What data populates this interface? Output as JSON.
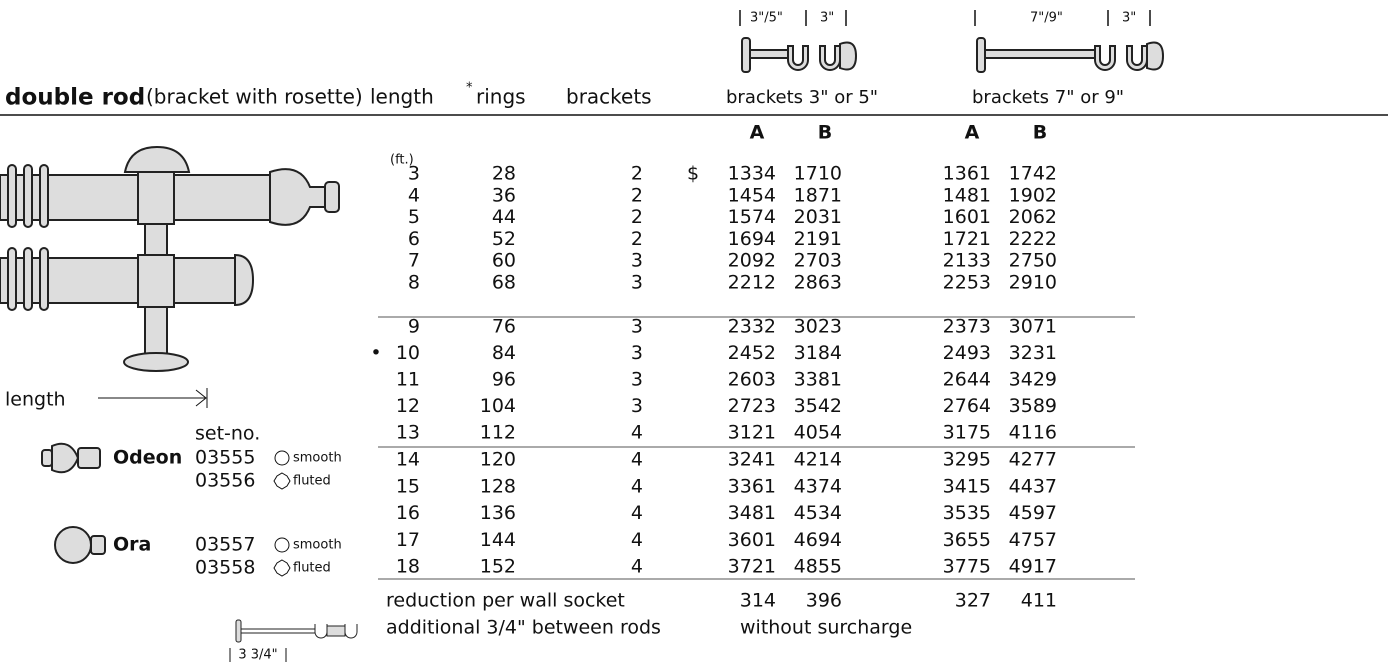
{
  "header": {
    "title": "double rod",
    "subtitle": "(bracket with rosette)",
    "col_length": "length",
    "col_rings_mark": "*",
    "col_rings": "rings",
    "col_brackets": "brackets",
    "col_brackets_a": "brackets 3\" or 5\"",
    "col_brackets_b": "brackets 7\" or 9\"",
    "dim_a": [
      "3\"/5\"",
      "3\""
    ],
    "dim_b": [
      "7\"/9\"",
      "3\""
    ]
  },
  "table": {
    "unit": "(ft.)",
    "subheads": [
      "A",
      "B",
      "A",
      "B"
    ],
    "rows": [
      {
        "prefix": "$",
        "cells": [
          3,
          28,
          2,
          1334,
          1710,
          1361,
          1742
        ]
      },
      {
        "cells": [
          4,
          36,
          2,
          1454,
          1871,
          1481,
          1902
        ]
      },
      {
        "cells": [
          5,
          44,
          2,
          1574,
          2031,
          1601,
          2062
        ]
      },
      {
        "cells": [
          6,
          52,
          2,
          1694,
          2191,
          1721,
          2222
        ]
      },
      {
        "cells": [
          7,
          60,
          3,
          2092,
          2703,
          2133,
          2750
        ]
      },
      {
        "cells": [
          8,
          68,
          3,
          2212,
          2863,
          2253,
          2910
        ]
      },
      {
        "cells": [
          9,
          76,
          3,
          2332,
          3023,
          2373,
          3071
        ]
      },
      {
        "marker": "•",
        "cells": [
          10,
          84,
          3,
          2452,
          3184,
          2493,
          3231
        ]
      },
      {
        "cells": [
          11,
          96,
          3,
          2603,
          3381,
          2644,
          3429
        ]
      },
      {
        "cells": [
          12,
          104,
          3,
          2723,
          3542,
          2764,
          3589
        ]
      },
      {
        "cells": [
          13,
          112,
          4,
          3121,
          4054,
          3175,
          4116
        ]
      },
      {
        "cells": [
          14,
          120,
          4,
          3241,
          4214,
          3295,
          4277
        ]
      },
      {
        "cells": [
          15,
          128,
          4,
          3361,
          4374,
          3415,
          4437
        ]
      },
      {
        "cells": [
          16,
          136,
          4,
          3481,
          4534,
          3535,
          4597
        ]
      },
      {
        "cells": [
          17,
          144,
          4,
          3601,
          4694,
          3655,
          4757
        ]
      },
      {
        "cells": [
          18,
          152,
          4,
          3721,
          4855,
          3775,
          4917
        ]
      }
    ]
  },
  "left": {
    "length_label": "length",
    "setno_label": "set-no.",
    "products": [
      {
        "name": "Odeon",
        "variants": [
          {
            "no": "03555",
            "finish": "smooth"
          },
          {
            "no": "03556",
            "finish": "fluted"
          }
        ]
      },
      {
        "name": "Ora",
        "variants": [
          {
            "no": "03557",
            "finish": "smooth"
          },
          {
            "no": "03558",
            "finish": "fluted"
          }
        ]
      }
    ]
  },
  "footer": {
    "reduction_label": "reduction per wall socket",
    "reduction": [
      314,
      396,
      327,
      411
    ],
    "additional": "additional 3/4\" between rods",
    "additional_note": "without surcharge",
    "gap_dim": "3 3/4\""
  }
}
